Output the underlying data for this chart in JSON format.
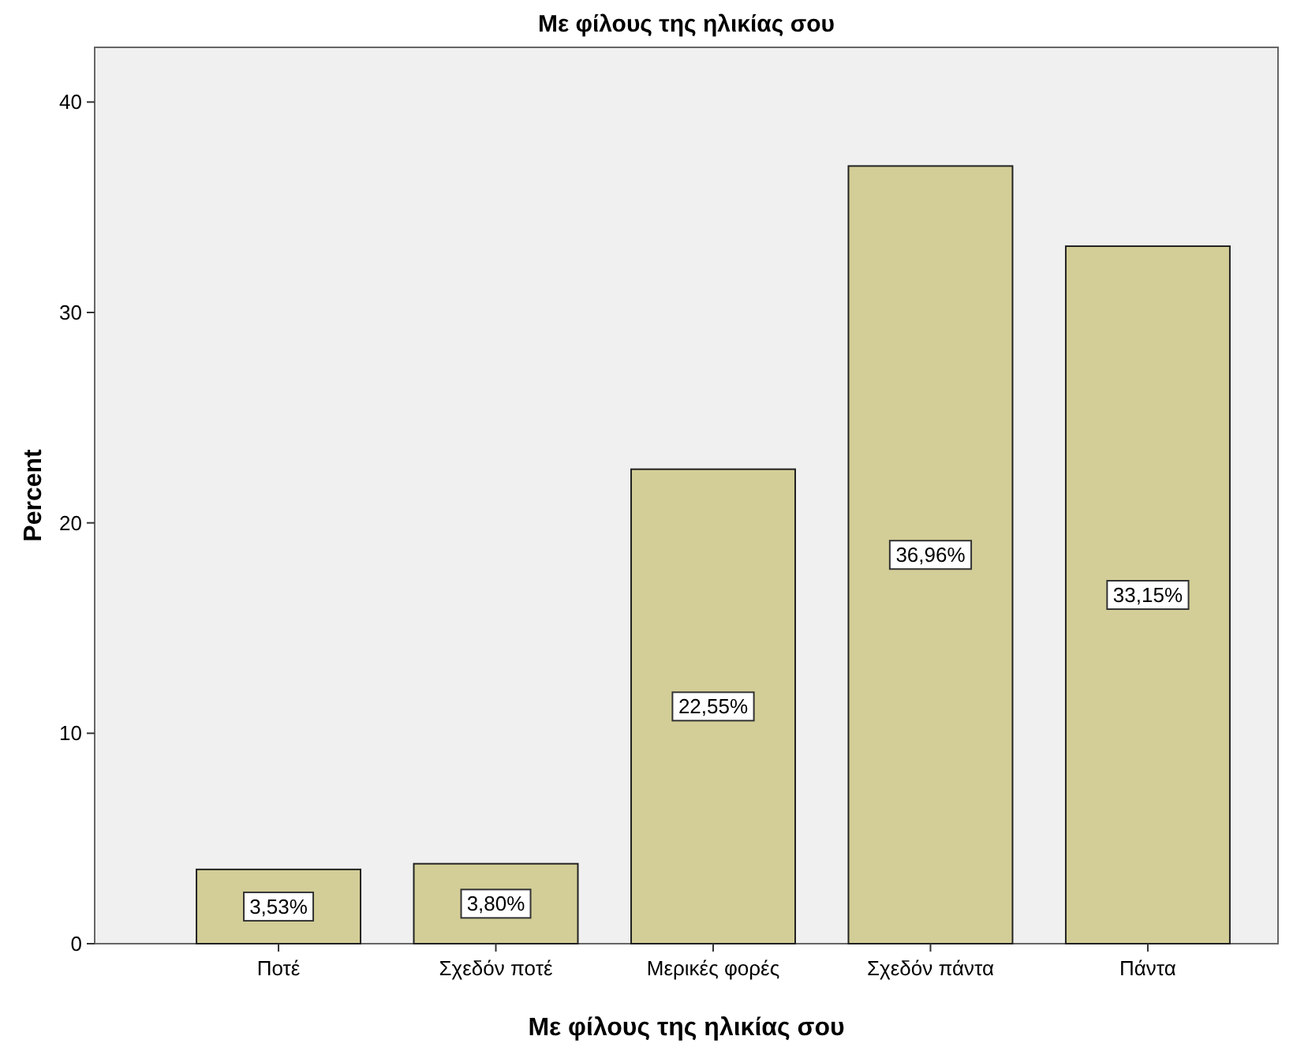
{
  "chart_data": {
    "type": "bar",
    "title": "Με φίλους της ηλικίας σου",
    "xlabel": "Με φίλους της ηλικίας σου",
    "ylabel": "Percent",
    "categories": [
      "Ποτέ",
      "Σχεδόν ποτέ",
      "Μερικές φορές",
      "Σχεδόν πάντα",
      "Πάντα"
    ],
    "values": [
      3.53,
      3.8,
      22.55,
      36.96,
      33.15
    ],
    "value_labels": [
      "3,53%",
      "3,80%",
      "22,55%",
      "36,96%",
      "33,15%"
    ],
    "color": "#d3ce97",
    "ylim": [
      0,
      42.6
    ],
    "yticks": [
      0,
      10,
      20,
      30,
      40
    ],
    "grid": false
  }
}
